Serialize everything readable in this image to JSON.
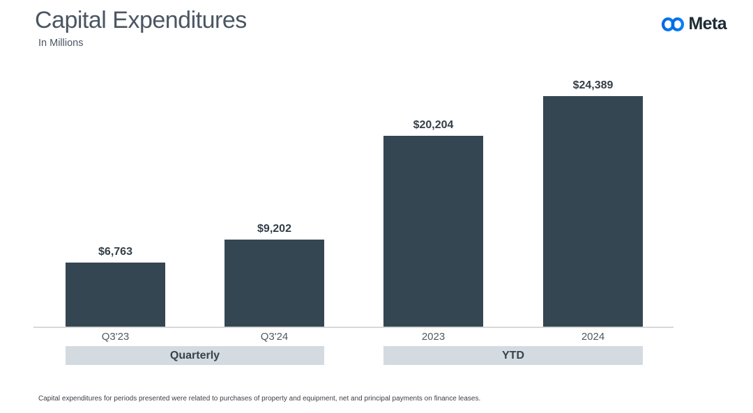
{
  "header": {
    "title": "Capital Expenditures",
    "subtitle": "In Millions",
    "brand": "Meta"
  },
  "chart_data": {
    "type": "bar",
    "categories": [
      "Q3'23",
      "Q3'24",
      "2023",
      "2024"
    ],
    "values": [
      6763,
      9202,
      20204,
      24389
    ],
    "value_labels": [
      "$6,763",
      "$9,202",
      "$20,204",
      "$24,389"
    ],
    "series": [
      {
        "name": "Capital Expenditures ($M)",
        "values": [
          6763,
          9202,
          20204,
          24389
        ]
      }
    ],
    "groups": [
      {
        "label": "Quarterly",
        "categories": [
          "Q3'23",
          "Q3'24"
        ]
      },
      {
        "label": "YTD",
        "categories": [
          "2023",
          "2024"
        ]
      }
    ],
    "title": "Capital Expenditures",
    "xlabel": "",
    "ylabel": "In Millions",
    "ylim": [
      0,
      26500
    ],
    "grid": false,
    "legend": false,
    "y_axis_visible": false,
    "data_labels_position": "above-bar"
  },
  "colors": {
    "bar": "#344652",
    "band_background": "#d3dae0",
    "band_text": "#37424b",
    "title_text": "#4a5663",
    "value_label_text": "#333e47",
    "brand_blue_start": "#0869e1",
    "brand_blue_end": "#0180fa"
  },
  "footnote": "Capital expenditures for periods presented were related to purchases of property and equipment, net and principal payments on finance leases."
}
